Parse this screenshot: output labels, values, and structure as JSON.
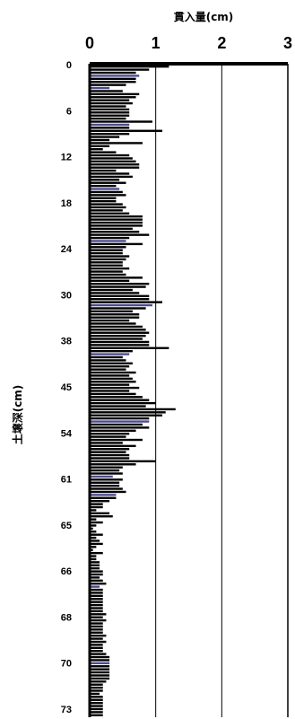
{
  "chart_data": {
    "type": "bar",
    "orientation": "horizontal",
    "xlabel": "貫入量(cm)",
    "ylabel": "土壌深(cm)",
    "xlim": [
      0,
      3
    ],
    "x_ticks": [
      "0",
      "1",
      "2",
      "3"
    ],
    "y_tick_labels": [
      "0",
      "6",
      "12",
      "18",
      "24",
      "30",
      "38",
      "45",
      "54",
      "61",
      "65",
      "66",
      "68",
      "70",
      "73"
    ],
    "grid": "vertical lines at 1, 2, 3",
    "colors": {
      "bar": "#000000",
      "highlight_bar": "#4b4b8f",
      "axis": "#000000"
    },
    "values": [
      1.2,
      0.9,
      0.7,
      0.75,
      0.7,
      0.7,
      0.55,
      0.3,
      0.5,
      0.75,
      0.7,
      0.6,
      0.65,
      0.55,
      0.6,
      0.6,
      0.6,
      0.55,
      0.95,
      0.6,
      0.6,
      1.1,
      0.6,
      0.45,
      0.3,
      0.8,
      0.3,
      0.2,
      0.4,
      0.6,
      0.65,
      0.7,
      0.75,
      0.75,
      0.4,
      0.6,
      0.65,
      0.45,
      0.55,
      0.4,
      0.45,
      0.5,
      0.55,
      0.4,
      0.4,
      0.5,
      0.55,
      0.5,
      0.6,
      0.8,
      0.8,
      0.8,
      0.8,
      0.65,
      0.75,
      0.9,
      0.6,
      0.55,
      0.8,
      0.55,
      0.5,
      0.5,
      0.6,
      0.55,
      0.5,
      0.5,
      0.6,
      0.5,
      0.55,
      0.8,
      0.6,
      0.9,
      0.85,
      0.65,
      0.75,
      0.9,
      0.9,
      1.1,
      0.95,
      0.85,
      0.65,
      0.75,
      0.75,
      0.6,
      0.7,
      0.8,
      0.85,
      0.9,
      0.85,
      0.8,
      0.9,
      0.9,
      1.2,
      0.65,
      0.6,
      0.5,
      0.55,
      0.65,
      0.6,
      0.55,
      0.7,
      0.6,
      0.65,
      0.7,
      0.6,
      0.75,
      0.6,
      0.7,
      0.8,
      0.9,
      1.0,
      0.85,
      1.3,
      1.15,
      1.1,
      0.9,
      0.9,
      0.8,
      0.9,
      0.7,
      0.6,
      0.55,
      0.8,
      0.5,
      0.7,
      0.6,
      0.55,
      0.6,
      0.6,
      1.0,
      0.7,
      0.5,
      0.45,
      0.5,
      0.35,
      0.5,
      0.45,
      0.45,
      0.5,
      0.55,
      0.4,
      0.4,
      0.3,
      0.2,
      0.2,
      0.1,
      0.3,
      0.35,
      0.1,
      0.2,
      0.1,
      0.05,
      0.1,
      0.2,
      0.1,
      0.15,
      0.2,
      0.1,
      0.05,
      0.2,
      0.1,
      0.1,
      0.15,
      0.15,
      0.15,
      0.2,
      0.2,
      0.15,
      0.2,
      0.25,
      0.15,
      0.2,
      0.2,
      0.2,
      0.2,
      0.2,
      0.2,
      0.2,
      0.2,
      0.25,
      0.2,
      0.25,
      0.2,
      0.2,
      0.2,
      0.2,
      0.25,
      0.2,
      0.25,
      0.2,
      0.2,
      0.2,
      0.25,
      0.3,
      0.3,
      0.3,
      0.3,
      0.3,
      0.3,
      0.3,
      0.3,
      0.25,
      0.2,
      0.2,
      0.2,
      0.15,
      0.2,
      0.2,
      0.2,
      0.2,
      0.2,
      0.2,
      0.2
    ],
    "highlighted_indices": [
      3,
      7,
      19,
      40,
      57,
      78,
      94,
      116,
      134,
      140,
      170,
      195
    ]
  }
}
